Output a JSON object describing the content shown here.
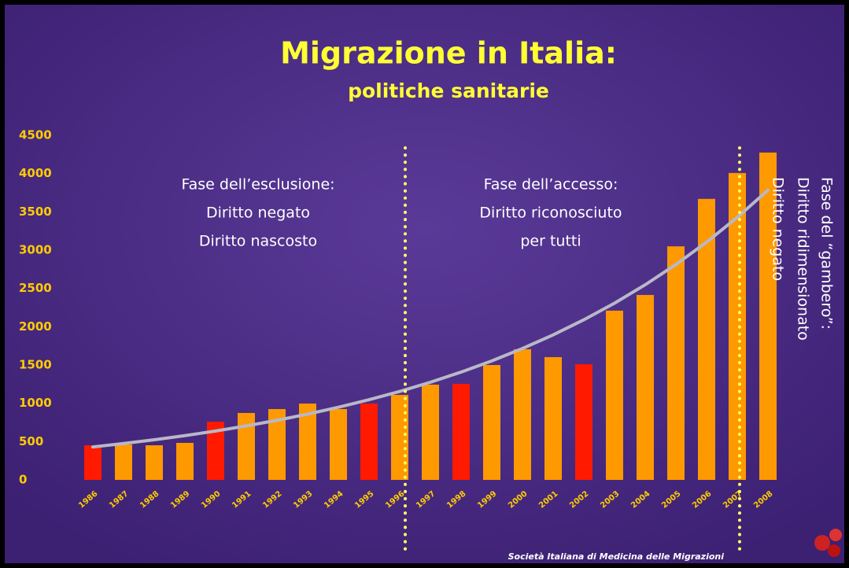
{
  "chart_data": {
    "type": "bar",
    "title": "Migrazione in Italia:",
    "subtitle": "politiche sanitarie",
    "categories": [
      "1986",
      "1987",
      "1988",
      "1989",
      "1990",
      "1991",
      "1992",
      "1993",
      "1994",
      "1995",
      "1996",
      "1997",
      "1998",
      "1999",
      "2000",
      "2001",
      "2002",
      "2003",
      "2004",
      "2005",
      "2006",
      "2007",
      "2008"
    ],
    "values": [
      452,
      462,
      452,
      483,
      760,
      874,
      925,
      997,
      925,
      997,
      1110,
      1244,
      1254,
      1500,
      1706,
      1603,
      1510,
      2210,
      2415,
      3050,
      3670,
      4008,
      4275
    ],
    "colors": [
      "#ff1a00",
      "#ff9900",
      "#ff9900",
      "#ff9900",
      "#ff1a00",
      "#ff9900",
      "#ff9900",
      "#ff9900",
      "#ff9900",
      "#ff1a00",
      "#ff9900",
      "#ff9900",
      "#ff1a00",
      "#ff9900",
      "#ff9900",
      "#ff9900",
      "#ff1a00",
      "#ff9900",
      "#ff9900",
      "#ff9900",
      "#ff9900",
      "#ff9900",
      "#ff9900"
    ],
    "trend": {
      "color": "#b8b8c8",
      "values": [
        430,
        475,
        524,
        578,
        638,
        705,
        778,
        859,
        948,
        1047,
        1155,
        1275,
        1408,
        1554,
        1716,
        1894,
        2091,
        2308,
        2548,
        2813,
        3105,
        3428,
        3784
      ]
    },
    "ylim": [
      0,
      4500
    ],
    "yticks": [
      0,
      500,
      1000,
      1500,
      2000,
      2500,
      3000,
      3500,
      4000,
      4500
    ],
    "annotations": [
      [
        "Fase dell’esclusione:",
        "Diritto negato",
        "Diritto nascosto"
      ],
      [
        "Fase dell’accesso:",
        "Diritto riconosciuto",
        "per tutti"
      ],
      [
        "Fase del “gambero”:",
        "Diritto ridimensionato",
        "Diritto negato"
      ]
    ],
    "footer": "Società Italiana di Medicina delle Migrazioni"
  }
}
